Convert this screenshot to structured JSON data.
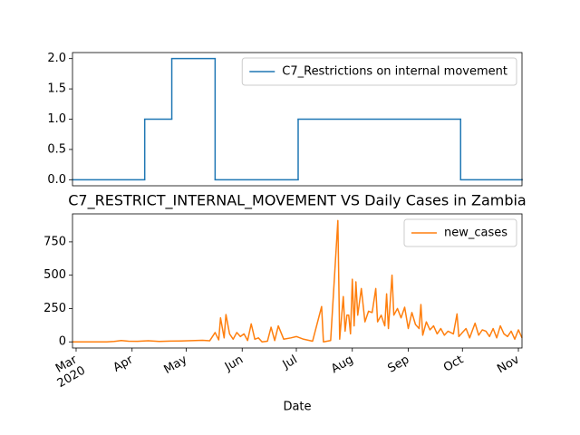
{
  "chart_data": [
    {
      "type": "line",
      "drawstyle": "steps-post",
      "x": [
        "2020-02-28",
        "2020-04-08",
        "2020-04-23",
        "2020-05-17",
        "2020-07-02",
        "2020-09-30",
        "2020-11-03"
      ],
      "series": [
        {
          "name": "C7_Restrictions on internal movement",
          "color": "#1f77b4",
          "values": [
            0,
            1,
            2,
            0,
            1,
            0,
            0
          ]
        }
      ],
      "xlim": [
        "2020-02-28",
        "2020-11-03"
      ],
      "ylim": [
        -0.1,
        2.1
      ],
      "yticks": [
        {
          "value": 0,
          "label": "0.0"
        },
        {
          "value": 0.5,
          "label": "0.5"
        },
        {
          "value": 1,
          "label": "1.0"
        },
        {
          "value": 1.5,
          "label": "1.5"
        },
        {
          "value": 2,
          "label": "2.0"
        }
      ],
      "legend": "upper right"
    },
    {
      "type": "line",
      "title": "C7_RESTRICT_INTERNAL_MOVEMENT VS Daily Cases in Zambia",
      "x_label": "Date",
      "x": [
        "2020-02-28",
        "2020-03-18",
        "2020-03-22",
        "2020-03-26",
        "2020-03-30",
        "2020-04-04",
        "2020-04-10",
        "2020-04-16",
        "2020-04-22",
        "2020-04-28",
        "2020-05-04",
        "2020-05-10",
        "2020-05-14",
        "2020-05-17",
        "2020-05-19",
        "2020-05-20",
        "2020-05-22",
        "2020-05-23",
        "2020-05-25",
        "2020-05-27",
        "2020-05-29",
        "2020-05-31",
        "2020-06-02",
        "2020-06-04",
        "2020-06-06",
        "2020-06-08",
        "2020-06-10",
        "2020-06-12",
        "2020-06-15",
        "2020-06-17",
        "2020-06-19",
        "2020-06-21",
        "2020-06-24",
        "2020-06-28",
        "2020-07-01",
        "2020-07-05",
        "2020-07-10",
        "2020-07-15",
        "2020-07-16",
        "2020-07-20",
        "2020-07-24",
        "2020-07-25",
        "2020-07-27",
        "2020-07-28",
        "2020-07-29",
        "2020-07-30",
        "2020-07-31",
        "2020-08-01",
        "2020-08-02",
        "2020-08-03",
        "2020-08-04",
        "2020-08-06",
        "2020-08-08",
        "2020-08-10",
        "2020-08-12",
        "2020-08-14",
        "2020-08-15",
        "2020-08-17",
        "2020-08-19",
        "2020-08-20",
        "2020-08-21",
        "2020-08-23",
        "2020-08-24",
        "2020-08-26",
        "2020-08-28",
        "2020-08-30",
        "2020-09-01",
        "2020-09-03",
        "2020-09-05",
        "2020-09-07",
        "2020-09-08",
        "2020-09-09",
        "2020-09-11",
        "2020-09-13",
        "2020-09-15",
        "2020-09-17",
        "2020-09-19",
        "2020-09-21",
        "2020-09-23",
        "2020-09-26",
        "2020-09-28",
        "2020-09-29",
        "2020-10-01",
        "2020-10-03",
        "2020-10-05",
        "2020-10-08",
        "2020-10-10",
        "2020-10-12",
        "2020-10-14",
        "2020-10-16",
        "2020-10-18",
        "2020-10-20",
        "2020-10-22",
        "2020-10-24",
        "2020-10-26",
        "2020-10-28",
        "2020-10-30",
        "2020-11-01",
        "2020-11-03"
      ],
      "series": [
        {
          "name": "new_cases",
          "color": "#ff7f0e",
          "values": [
            0,
            0,
            3,
            10,
            5,
            4,
            8,
            3,
            6,
            7,
            9,
            12,
            8,
            70,
            15,
            180,
            30,
            205,
            60,
            20,
            70,
            40,
            60,
            10,
            135,
            20,
            30,
            0,
            5,
            110,
            10,
            120,
            20,
            30,
            40,
            20,
            5,
            265,
            0,
            10,
            910,
            20,
            340,
            80,
            200,
            200,
            60,
            470,
            120,
            450,
            200,
            400,
            150,
            230,
            220,
            400,
            150,
            200,
            120,
            360,
            100,
            500,
            200,
            250,
            180,
            260,
            100,
            220,
            130,
            100,
            280,
            50,
            150,
            90,
            120,
            60,
            100,
            50,
            80,
            60,
            210,
            40,
            70,
            100,
            30,
            140,
            50,
            90,
            80,
            40,
            100,
            30,
            120,
            60,
            40,
            80,
            20,
            90,
            30
          ]
        }
      ],
      "xlim": [
        "2020-02-28",
        "2020-11-03"
      ],
      "xticks": [
        {
          "value": "2020-03-01",
          "label": "Mar"
        },
        {
          "value": "2020-04-01",
          "label": "Apr"
        },
        {
          "value": "2020-05-01",
          "label": "May"
        },
        {
          "value": "2020-06-01",
          "label": "Jun"
        },
        {
          "value": "2020-07-01",
          "label": "Jul"
        },
        {
          "value": "2020-08-01",
          "label": "Aug"
        },
        {
          "value": "2020-09-01",
          "label": "Sep"
        },
        {
          "value": "2020-10-01",
          "label": "Oct"
        },
        {
          "value": "2020-11-01",
          "label": "Nov"
        }
      ],
      "x_year_label": "2020",
      "ylim": [
        -46,
        960
      ],
      "yticks": [
        0,
        250,
        500,
        750
      ],
      "legend": "upper right"
    }
  ]
}
